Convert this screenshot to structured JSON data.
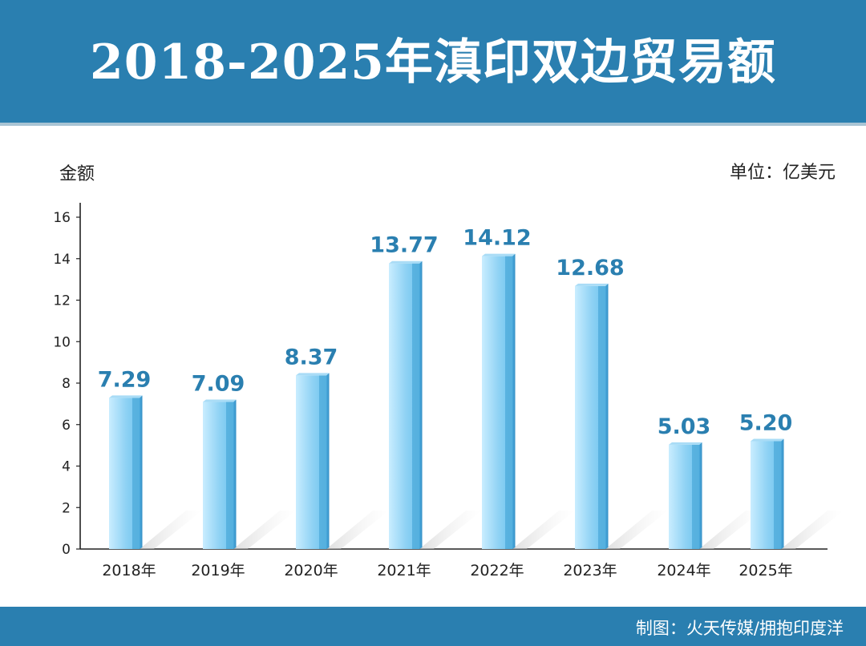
{
  "header": {
    "title": "2018-2025年滇印双边贸易额"
  },
  "chart_labels": {
    "ylabel": "金额",
    "unit": "单位：亿美元"
  },
  "footer": {
    "credit": "制图：火天传媒/拥抱印度洋"
  },
  "colors": {
    "brand": "#2a7fb0",
    "bar_light": "#b8e6ff",
    "bar_mid": "#6cc3ee",
    "bar_dark": "#3f9fd4",
    "value_label": "#2a7fb0"
  },
  "chart_data": {
    "type": "bar",
    "title": "2018-2025年滇印双边贸易额",
    "ylabel": "金额",
    "unit": "单位：亿美元",
    "categories": [
      "2018年",
      "2019年",
      "2020年",
      "2021年",
      "2022年",
      "2023年",
      "2024年",
      "2025年"
    ],
    "values": [
      7.29,
      7.09,
      8.37,
      13.77,
      14.12,
      12.68,
      5.03,
      5.2
    ],
    "value_labels": [
      "7.29",
      "7.09",
      "8.37",
      "13.77",
      "14.12",
      "12.68",
      "5.03",
      "5.20"
    ],
    "yticks": [
      0,
      2,
      4,
      6,
      8,
      10,
      12,
      14,
      16
    ],
    "ylim": [
      0,
      16
    ],
    "grid": false,
    "legend": "none"
  }
}
